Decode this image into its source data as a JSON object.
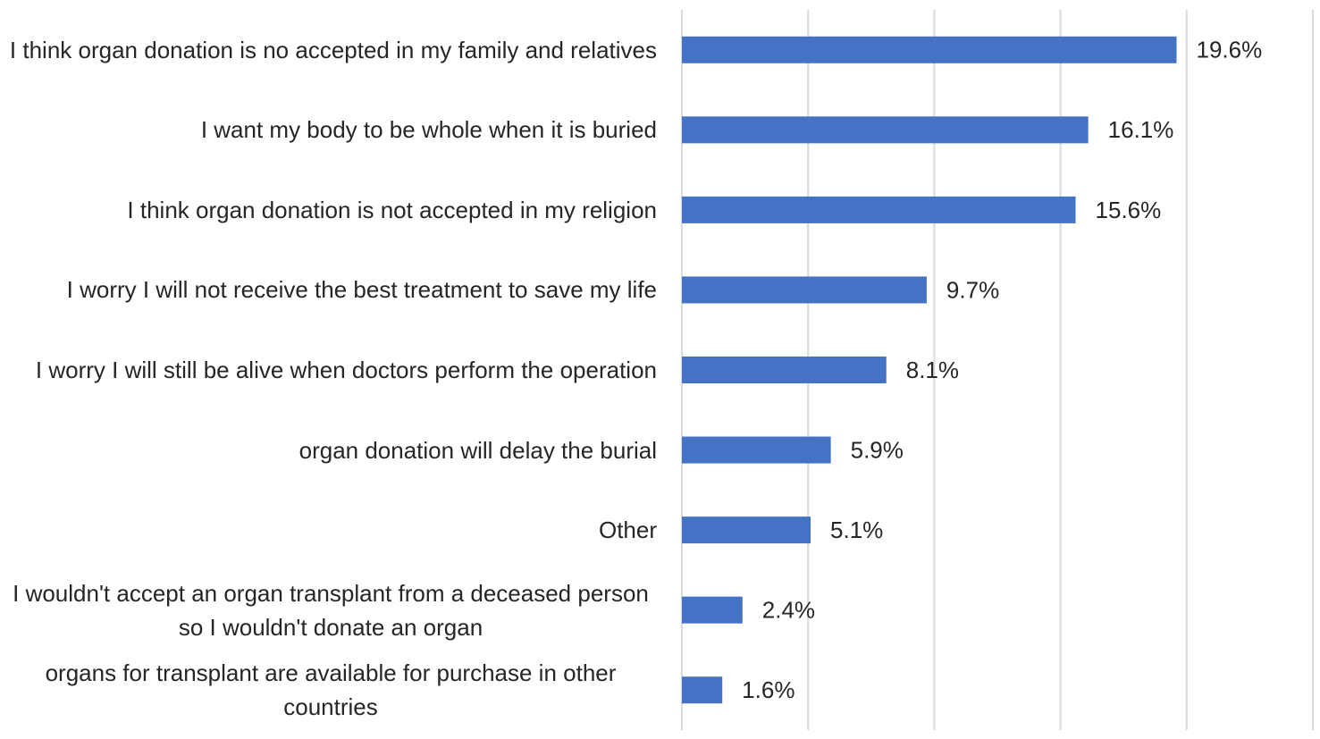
{
  "chart_data": {
    "type": "bar",
    "orientation": "horizontal",
    "categories": [
      "I think organ donation is no accepted in my family and relatives",
      "I want my body to be whole when it is buried",
      "I think organ donation is not accepted in my religion",
      "I worry I will not receive the best treatment to save my life",
      "I worry I will still be alive when doctors perform the operation",
      "organ donation will delay the burial",
      "Other",
      "I wouldn't accept an organ transplant from a deceased person so I wouldn't donate an organ",
      "organs for transplant are available for purchase in other countries"
    ],
    "values": [
      19.6,
      16.1,
      15.6,
      9.7,
      8.1,
      5.9,
      5.1,
      2.4,
      1.6
    ],
    "value_labels": [
      "19.6%",
      "16.1%",
      "15.6%",
      "9.7%",
      "8.1%",
      "5.9%",
      "5.1%",
      "2.4%",
      "1.6%"
    ],
    "color": "#4472c4",
    "xlim": [
      0,
      25
    ],
    "xticks": [
      0,
      5,
      10,
      15,
      20,
      25
    ],
    "grid": true
  }
}
